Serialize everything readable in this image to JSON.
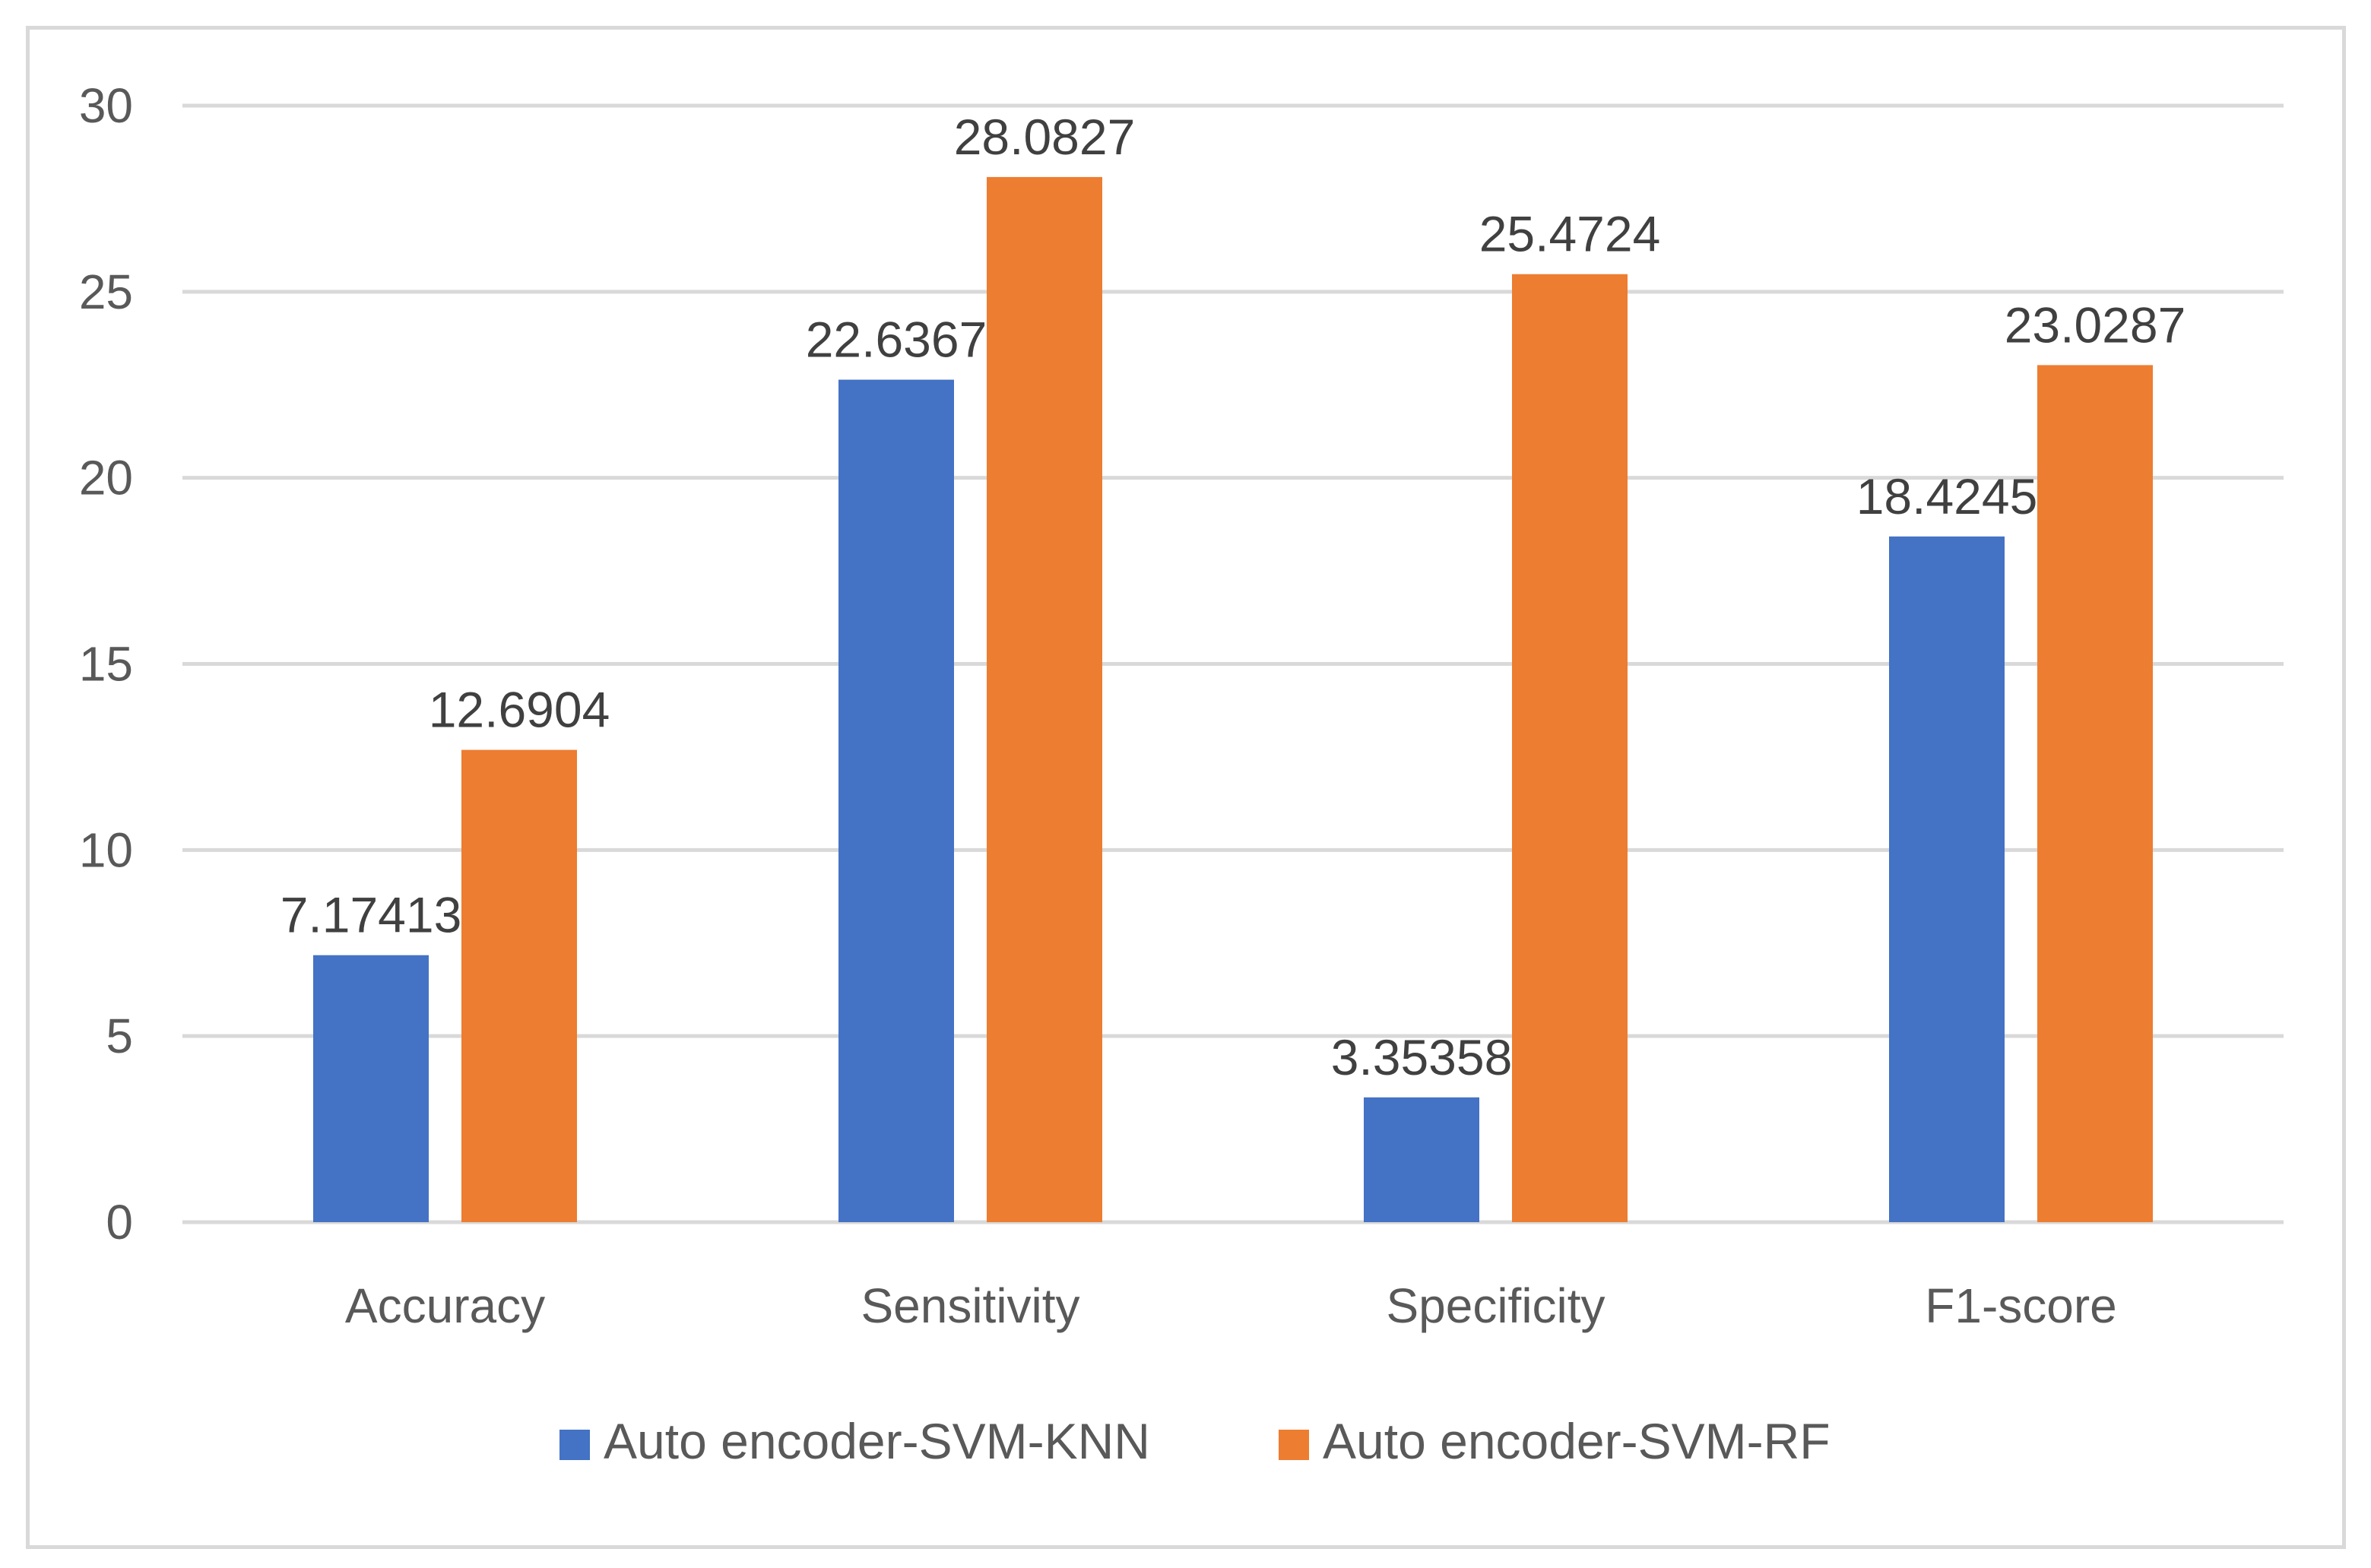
{
  "chart_data": {
    "type": "bar",
    "title": "",
    "xlabel": "",
    "ylabel": "",
    "categories": [
      "Accuracy",
      "Sensitivity",
      "Specificity",
      "F1-score"
    ],
    "series": [
      {
        "name": "Auto encoder-SVM-KNN",
        "color": "#4472c4",
        "values": [
          7.17413,
          22.6367,
          3.35358,
          18.4245
        ],
        "labels": [
          "7.17413",
          "22.6367",
          "3.35358",
          "18.4245"
        ]
      },
      {
        "name": "Auto encoder-SVM-RF",
        "color": "#ed7d31",
        "values": [
          12.6904,
          28.0827,
          25.4724,
          23.0287
        ],
        "labels": [
          "12.6904",
          "28.0827",
          "25.4724",
          "23.0287"
        ]
      }
    ],
    "ylim": [
      0,
      30
    ],
    "yticks": [
      0,
      5,
      10,
      15,
      20,
      25,
      30
    ],
    "ytick_labels": [
      "0",
      "5",
      "10",
      "15",
      "20",
      "25",
      "30"
    ],
    "grid": true,
    "gridline_color": "#d9d9d9",
    "legend_position": "bottom",
    "data_labels": true
  }
}
